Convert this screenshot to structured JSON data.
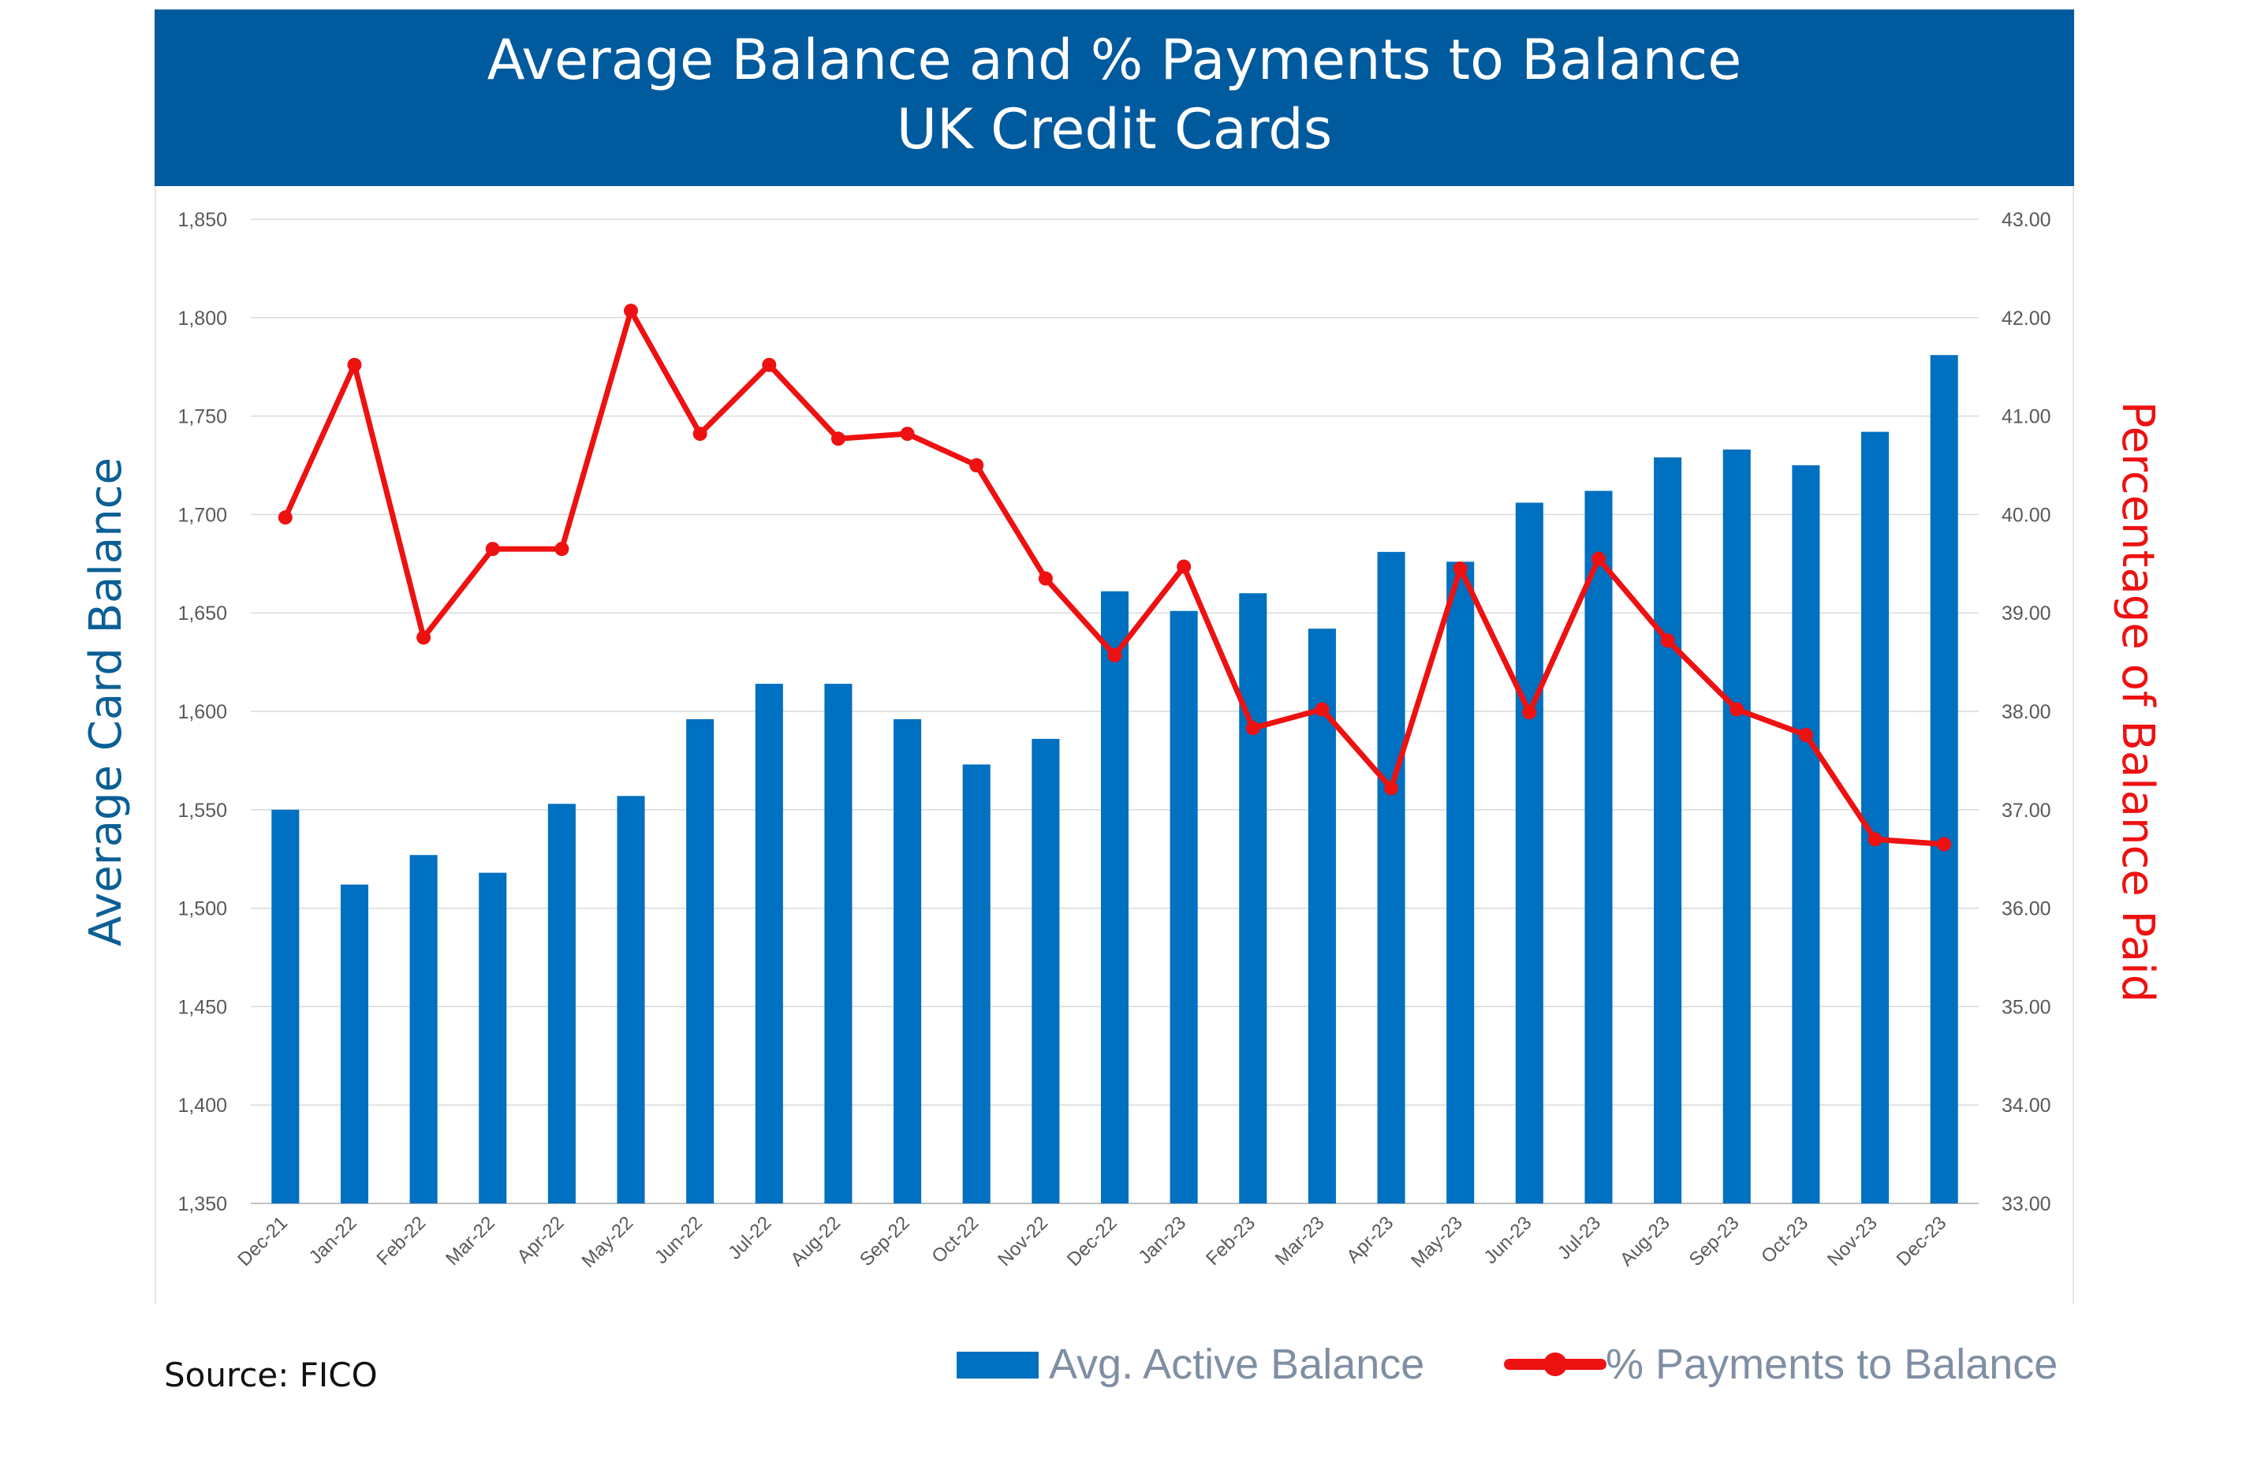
{
  "chart_data": {
    "type": "bar+line",
    "title": "Average Balance and % Payments to Balance",
    "subtitle": "UK Credit Cards",
    "categories": [
      "Dec-21",
      "Jan-22",
      "Feb-22",
      "Mar-22",
      "Apr-22",
      "May-22",
      "Jun-22",
      "Jul-22",
      "Aug-22",
      "Sep-22",
      "Oct-22",
      "Nov-22",
      "Dec-22",
      "Jan-23",
      "Feb-23",
      "Mar-23",
      "Apr-23",
      "May-23",
      "Jun-23",
      "Jul-23",
      "Aug-23",
      "Sep-23",
      "Oct-23",
      "Nov-23",
      "Dec-23"
    ],
    "series": [
      {
        "name": "Avg. Active Balance",
        "type": "bar",
        "axis": "left",
        "color": "#0070c0",
        "values": [
          1550,
          1512,
          1527,
          1518,
          1553,
          1557,
          1596,
          1614,
          1614,
          1596,
          1573,
          1586,
          1661,
          1651,
          1660,
          1642,
          1681,
          1676,
          1706,
          1712,
          1729,
          1733,
          1725,
          1742,
          1781
        ]
      },
      {
        "name": "% Payments to Balance",
        "type": "line",
        "axis": "right",
        "color": "#ee1111",
        "values": [
          39.97,
          41.52,
          38.75,
          39.65,
          39.65,
          42.07,
          40.82,
          41.52,
          40.77,
          40.82,
          40.5,
          39.35,
          38.57,
          39.47,
          37.83,
          38.02,
          37.22,
          39.45,
          37.99,
          39.55,
          38.72,
          38.02,
          37.76,
          36.7,
          36.65
        ]
      }
    ],
    "y_left": {
      "label": "Average Card Balance",
      "min": 1350,
      "max": 1850,
      "ticks": [
        "1,350",
        "1,400",
        "1,450",
        "1,500",
        "1,550",
        "1,600",
        "1,650",
        "1,700",
        "1,750",
        "1,800",
        "1,850"
      ],
      "label_color": "#0b5f95"
    },
    "y_right": {
      "label": "Percentage of Balance Paid",
      "min": 33,
      "max": 43,
      "ticks": [
        "33.00",
        "34.00",
        "35.00",
        "36.00",
        "37.00",
        "38.00",
        "39.00",
        "40.00",
        "41.00",
        "42.00",
        "43.00"
      ],
      "label_color": "#ee1111"
    },
    "grid": true,
    "legend_position": "bottom-right",
    "title_bar_color": "#005a9e",
    "source": "Source: FICO"
  }
}
